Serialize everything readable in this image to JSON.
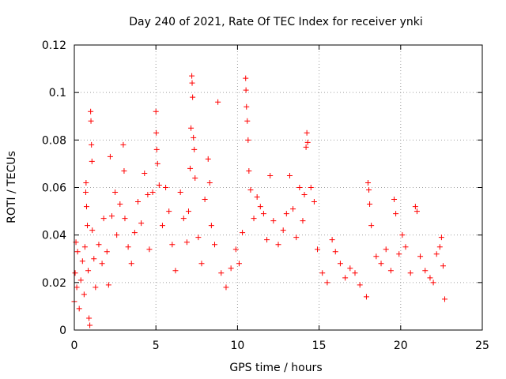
{
  "chart_data": {
    "type": "scatter",
    "title": "Day 240 of 2021, Rate Of TEC Index for receiver ynki",
    "xlabel": "GPS time / hours",
    "ylabel": "ROTI / TECUs",
    "xlim": [
      0,
      25
    ],
    "ylim": [
      0,
      0.12
    ],
    "x_ticks": [
      "0",
      "5",
      "10",
      "15",
      "20",
      "25"
    ],
    "y_ticks": [
      "0",
      "0.02",
      "0.04",
      "0.06",
      "0.08",
      "0.1",
      "0.12"
    ],
    "x_tick_values": [
      0,
      5,
      10,
      15,
      20,
      25
    ],
    "y_tick_values": [
      0,
      0.02,
      0.04,
      0.06,
      0.08,
      0.1,
      0.12
    ],
    "grid": true,
    "marker": "+",
    "color": "#ff0000",
    "x_data_range": [
      0,
      22.7
    ],
    "series": [
      {
        "points": [
          [
            0.0,
            0.012
          ],
          [
            0.05,
            0.024
          ],
          [
            0.1,
            0.037
          ],
          [
            0.15,
            0.018
          ],
          [
            0.2,
            0.033
          ],
          [
            0.3,
            0.009
          ],
          [
            0.4,
            0.021
          ],
          [
            0.5,
            0.029
          ],
          [
            0.6,
            0.015
          ],
          [
            0.65,
            0.035
          ],
          [
            0.7,
            0.058
          ],
          [
            0.72,
            0.062
          ],
          [
            0.75,
            0.052
          ],
          [
            0.8,
            0.044
          ],
          [
            0.85,
            0.025
          ],
          [
            0.9,
            0.005
          ],
          [
            0.95,
            0.002
          ],
          [
            1.0,
            0.092
          ],
          [
            1.02,
            0.088
          ],
          [
            1.05,
            0.078
          ],
          [
            1.08,
            0.071
          ],
          [
            1.1,
            0.042
          ],
          [
            1.2,
            0.03
          ],
          [
            1.3,
            0.018
          ],
          [
            1.5,
            0.036
          ],
          [
            1.7,
            0.028
          ],
          [
            1.8,
            0.047
          ],
          [
            2.0,
            0.033
          ],
          [
            2.1,
            0.019
          ],
          [
            2.2,
            0.073
          ],
          [
            2.3,
            0.048
          ],
          [
            2.5,
            0.058
          ],
          [
            2.6,
            0.04
          ],
          [
            2.8,
            0.053
          ],
          [
            3.0,
            0.078
          ],
          [
            3.05,
            0.067
          ],
          [
            3.1,
            0.047
          ],
          [
            3.3,
            0.035
          ],
          [
            3.5,
            0.028
          ],
          [
            3.7,
            0.041
          ],
          [
            3.9,
            0.054
          ],
          [
            4.1,
            0.045
          ],
          [
            4.3,
            0.066
          ],
          [
            4.5,
            0.057
          ],
          [
            4.6,
            0.034
          ],
          [
            4.8,
            0.058
          ],
          [
            5.0,
            0.092
          ],
          [
            5.02,
            0.083
          ],
          [
            5.05,
            0.076
          ],
          [
            5.1,
            0.07
          ],
          [
            5.2,
            0.061
          ],
          [
            5.4,
            0.044
          ],
          [
            5.6,
            0.06
          ],
          [
            5.8,
            0.05
          ],
          [
            6.0,
            0.036
          ],
          [
            6.2,
            0.025
          ],
          [
            6.5,
            0.058
          ],
          [
            6.7,
            0.047
          ],
          [
            6.9,
            0.037
          ],
          [
            7.0,
            0.05
          ],
          [
            7.1,
            0.068
          ],
          [
            7.15,
            0.085
          ],
          [
            7.2,
            0.107
          ],
          [
            7.22,
            0.104
          ],
          [
            7.25,
            0.098
          ],
          [
            7.3,
            0.081
          ],
          [
            7.35,
            0.076
          ],
          [
            7.4,
            0.064
          ],
          [
            7.6,
            0.039
          ],
          [
            7.8,
            0.028
          ],
          [
            8.0,
            0.055
          ],
          [
            8.2,
            0.072
          ],
          [
            8.3,
            0.062
          ],
          [
            8.4,
            0.044
          ],
          [
            8.6,
            0.036
          ],
          [
            8.8,
            0.096
          ],
          [
            9.0,
            0.024
          ],
          [
            9.3,
            0.018
          ],
          [
            9.6,
            0.026
          ],
          [
            9.9,
            0.034
          ],
          [
            10.1,
            0.028
          ],
          [
            10.3,
            0.041
          ],
          [
            10.5,
            0.106
          ],
          [
            10.52,
            0.101
          ],
          [
            10.55,
            0.094
          ],
          [
            10.6,
            0.088
          ],
          [
            10.65,
            0.08
          ],
          [
            10.7,
            0.067
          ],
          [
            10.8,
            0.059
          ],
          [
            11.0,
            0.047
          ],
          [
            11.2,
            0.056
          ],
          [
            11.4,
            0.052
          ],
          [
            11.6,
            0.049
          ],
          [
            11.8,
            0.038
          ],
          [
            12.0,
            0.065
          ],
          [
            12.2,
            0.046
          ],
          [
            12.5,
            0.036
          ],
          [
            12.8,
            0.042
          ],
          [
            13.0,
            0.049
          ],
          [
            13.2,
            0.065
          ],
          [
            13.4,
            0.051
          ],
          [
            13.6,
            0.039
          ],
          [
            13.8,
            0.06
          ],
          [
            14.0,
            0.046
          ],
          [
            14.1,
            0.057
          ],
          [
            14.2,
            0.077
          ],
          [
            14.25,
            0.083
          ],
          [
            14.3,
            0.079
          ],
          [
            14.5,
            0.06
          ],
          [
            14.7,
            0.054
          ],
          [
            14.9,
            0.034
          ],
          [
            15.2,
            0.024
          ],
          [
            15.5,
            0.02
          ],
          [
            15.8,
            0.038
          ],
          [
            16.0,
            0.033
          ],
          [
            16.3,
            0.028
          ],
          [
            16.6,
            0.022
          ],
          [
            16.9,
            0.026
          ],
          [
            17.2,
            0.024
          ],
          [
            17.5,
            0.019
          ],
          [
            17.9,
            0.014
          ],
          [
            18.0,
            0.062
          ],
          [
            18.05,
            0.059
          ],
          [
            18.1,
            0.053
          ],
          [
            18.2,
            0.044
          ],
          [
            18.5,
            0.031
          ],
          [
            18.8,
            0.028
          ],
          [
            19.1,
            0.034
          ],
          [
            19.4,
            0.025
          ],
          [
            19.6,
            0.055
          ],
          [
            19.7,
            0.049
          ],
          [
            19.9,
            0.032
          ],
          [
            20.1,
            0.04
          ],
          [
            20.3,
            0.035
          ],
          [
            20.6,
            0.024
          ],
          [
            20.9,
            0.052
          ],
          [
            21.0,
            0.05
          ],
          [
            21.2,
            0.031
          ],
          [
            21.5,
            0.025
          ],
          [
            21.8,
            0.022
          ],
          [
            22.0,
            0.02
          ],
          [
            22.2,
            0.032
          ],
          [
            22.4,
            0.035
          ],
          [
            22.5,
            0.039
          ],
          [
            22.6,
            0.027
          ],
          [
            22.7,
            0.013
          ]
        ]
      }
    ]
  }
}
